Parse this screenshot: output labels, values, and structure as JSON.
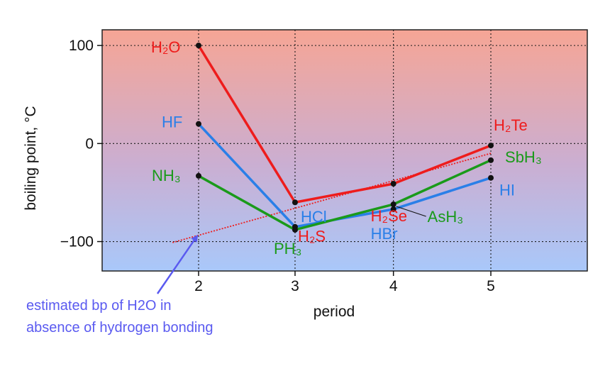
{
  "chart_data": {
    "type": "line",
    "xlabel": "period",
    "ylabel": "boiling point, °C",
    "x_ticks": [
      "2",
      "3",
      "4",
      "5"
    ],
    "y_ticks": [
      "100",
      "0",
      "−100"
    ],
    "xlim": [
      1,
      6.03
    ],
    "ylim": [
      -130,
      116
    ],
    "grid": true,
    "background": "vertical gradient, salmon (top) to light blue (bottom)",
    "series": [
      {
        "name": "H2O / H2S / H2Se / H2Te",
        "color": "#ee1c1c",
        "labels": [
          "H₂O",
          "H₂S",
          "H₂Se",
          "H₂Te"
        ],
        "x": [
          2,
          3,
          4.02,
          5.03
        ],
        "y": [
          100,
          -60,
          -41,
          -2
        ]
      },
      {
        "name": "HF / HCl / HBr / HI",
        "color": "#2a7fe8",
        "labels": [
          "HF",
          "HCl",
          "HBr",
          "HI"
        ],
        "x": [
          2,
          3,
          4.02,
          5.03
        ],
        "y": [
          20,
          -85,
          -67,
          -35
        ]
      },
      {
        "name": "NH3 / PH3 / AsH3 / SbH3",
        "color": "#1a9a1a",
        "labels": [
          "NH₃",
          "PH₃",
          "AsH₃",
          "SbH₃"
        ],
        "x": [
          2,
          3,
          4.02,
          5.03
        ],
        "y": [
          -33,
          -88,
          -62,
          -17
        ]
      }
    ],
    "trend_line": {
      "color": "#ee1c1c",
      "style": "dotted",
      "x": [
        1.73,
        5.03
      ],
      "y": [
        -101,
        -10
      ]
    },
    "annotation": {
      "line1": "estimated bp of H2O in",
      "line2": "absence of hydrogen bonding",
      "color": "#5a5af0",
      "arrow_to": {
        "x": 2,
        "y": -92
      }
    }
  }
}
